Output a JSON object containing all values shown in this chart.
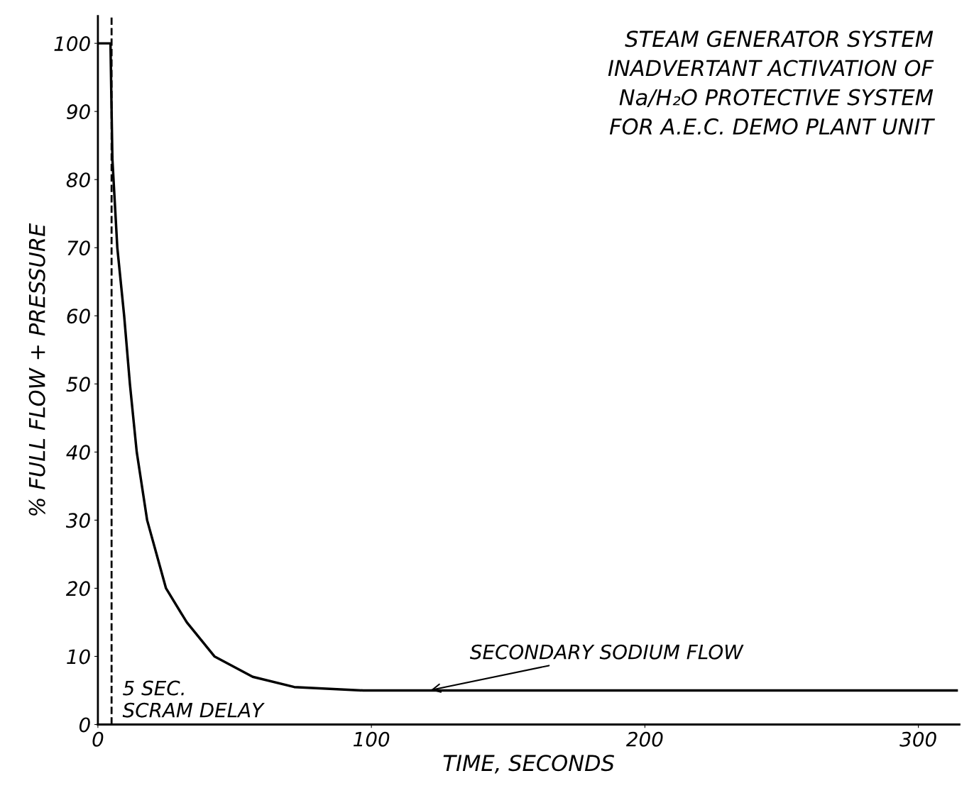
{
  "chart_data": {
    "type": "line",
    "title": "STEAM GENERATOR SYSTEM\nINADVERTANT ACTIVATION OF\nNa/H₂O PROTECTIVE SYSTEM\nFOR A.E.C. DEMO PLANT UNIT",
    "xlabel": "TIME, SECONDS",
    "ylabel": "% FULL FLOW + PRESSURE",
    "series": [
      {
        "color": "#000000",
        "x": [
          0,
          4.6,
          5.3,
          7.1,
          9.6,
          11.7,
          14.2,
          18,
          24.9,
          32.5,
          42.6,
          56.6,
          71.8,
          97,
          150,
          200,
          250,
          314
        ],
        "values": [
          100,
          100,
          83,
          70,
          60,
          50,
          40,
          30,
          20,
          15,
          10,
          7,
          5.5,
          5,
          5,
          5,
          5,
          5
        ]
      }
    ],
    "xlim": [
      0,
      315
    ],
    "ylim": [
      0,
      104
    ],
    "xticks": [
      0,
      100,
      200,
      300
    ],
    "yticks": [
      0,
      10,
      20,
      30,
      40,
      50,
      60,
      70,
      80,
      90,
      100
    ],
    "ref_lines": [
      {
        "axis": "x",
        "value": 5,
        "label": "5 SEC.\nSCRAM DELAY",
        "line_style": "dashed",
        "color": "#000000"
      }
    ],
    "annotations": [
      {
        "text": "SECONDARY SODIUM FLOW",
        "x": 121,
        "y": 5
      }
    ],
    "grid": false,
    "marker": "none",
    "line_style": "solid"
  }
}
